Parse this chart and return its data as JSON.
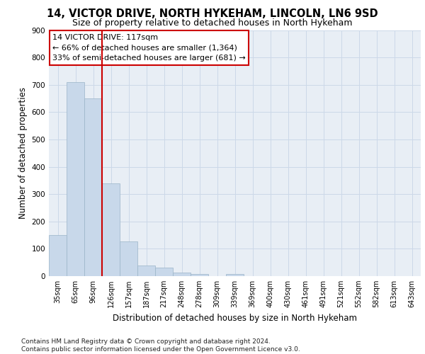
{
  "title1": "14, VICTOR DRIVE, NORTH HYKEHAM, LINCOLN, LN6 9SD",
  "title2": "Size of property relative to detached houses in North Hykeham",
  "xlabel": "Distribution of detached houses by size in North Hykeham",
  "ylabel": "Number of detached properties",
  "bar_values": [
    150,
    710,
    650,
    340,
    128,
    40,
    30,
    12,
    8,
    0,
    8,
    0,
    0,
    0,
    0,
    0,
    0,
    0,
    0,
    0,
    0
  ],
  "categories": [
    "35sqm",
    "65sqm",
    "96sqm",
    "126sqm",
    "157sqm",
    "187sqm",
    "217sqm",
    "248sqm",
    "278sqm",
    "309sqm",
    "339sqm",
    "369sqm",
    "400sqm",
    "430sqm",
    "461sqm",
    "491sqm",
    "521sqm",
    "552sqm",
    "582sqm",
    "613sqm",
    "643sqm"
  ],
  "bar_color": "#c8d8ea",
  "bar_edgecolor": "#9ab4c8",
  "vline_x": 2.5,
  "vline_color": "#cc0000",
  "annotation_text": "14 VICTOR DRIVE: 117sqm\n← 66% of detached houses are smaller (1,364)\n33% of semi-detached houses are larger (681) →",
  "annotation_box_edgecolor": "#cc0000",
  "annotation_box_facecolor": "#ffffff",
  "ylim": [
    0,
    900
  ],
  "yticks": [
    0,
    100,
    200,
    300,
    400,
    500,
    600,
    700,
    800,
    900
  ],
  "grid_color": "#ccd8e8",
  "background_color": "#e8eef5",
  "footer": "Contains HM Land Registry data © Crown copyright and database right 2024.\nContains public sector information licensed under the Open Government Licence v3.0.",
  "title1_fontsize": 10.5,
  "title2_fontsize": 9,
  "xlabel_fontsize": 8.5,
  "ylabel_fontsize": 8.5,
  "annotation_fontsize": 8,
  "footer_fontsize": 6.5
}
